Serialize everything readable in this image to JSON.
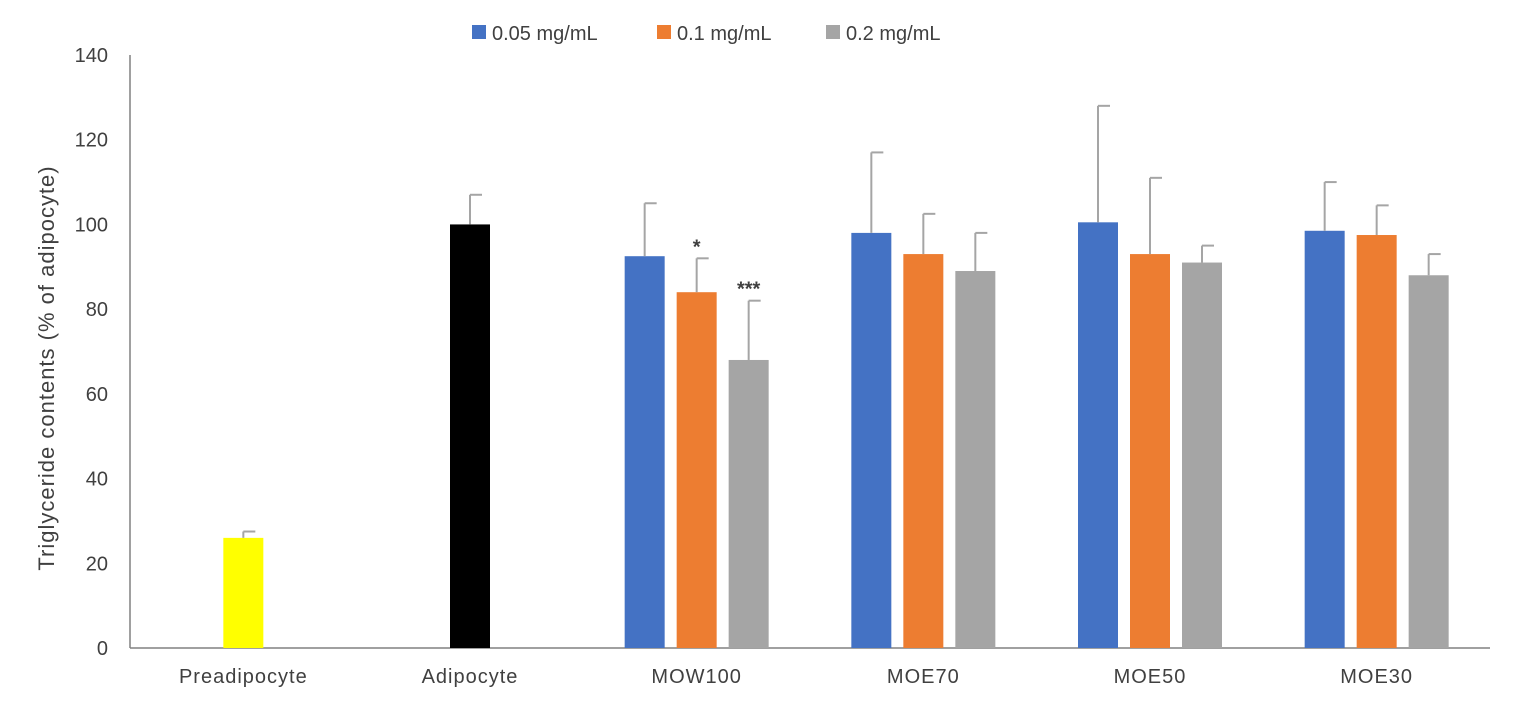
{
  "chart_data": {
    "type": "bar",
    "title": "",
    "xlabel": "",
    "ylabel": "Triglyceride  contents (% of adipocyte)",
    "ylim": [
      0,
      140
    ],
    "yticks": [
      0,
      20,
      40,
      60,
      80,
      100,
      120,
      140
    ],
    "grid": false,
    "legend_position": "top-center",
    "legend": [
      {
        "label": "0.05 mg/mL",
        "color": "#4472C4"
      },
      {
        "label": "0.1 mg/mL",
        "color": "#ED7D31"
      },
      {
        "label": "0.2 mg/mL",
        "color": "#A5A5A5"
      }
    ],
    "groups": [
      {
        "label": "Preadipocyte",
        "bars": [
          {
            "value": 26,
            "error": 1.5,
            "color": "#FFFF00"
          }
        ]
      },
      {
        "label": "Adipocyte",
        "bars": [
          {
            "value": 100,
            "error": 7,
            "color": "#000000"
          }
        ]
      },
      {
        "label": "MOW100",
        "bars": [
          {
            "value": 92.5,
            "error": 12.5,
            "color": "#4472C4",
            "annotation": ""
          },
          {
            "value": 84,
            "error": 8,
            "color": "#ED7D31",
            "annotation": "*"
          },
          {
            "value": 68,
            "error": 14,
            "color": "#A5A5A5",
            "annotation": "***"
          }
        ]
      },
      {
        "label": "MOE70",
        "bars": [
          {
            "value": 98,
            "error": 19,
            "color": "#4472C4"
          },
          {
            "value": 93,
            "error": 9.5,
            "color": "#ED7D31"
          },
          {
            "value": 89,
            "error": 9,
            "color": "#A5A5A5"
          }
        ]
      },
      {
        "label": "MOE50",
        "bars": [
          {
            "value": 100.5,
            "error": 27.5,
            "color": "#4472C4"
          },
          {
            "value": 93,
            "error": 18,
            "color": "#ED7D31"
          },
          {
            "value": 91,
            "error": 4,
            "color": "#A5A5A5"
          }
        ]
      },
      {
        "label": "MOE30",
        "bars": [
          {
            "value": 98.5,
            "error": 11.5,
            "color": "#4472C4"
          },
          {
            "value": 97.5,
            "error": 7,
            "color": "#ED7D31"
          },
          {
            "value": 88,
            "error": 5,
            "color": "#A5A5A5"
          }
        ]
      }
    ]
  }
}
